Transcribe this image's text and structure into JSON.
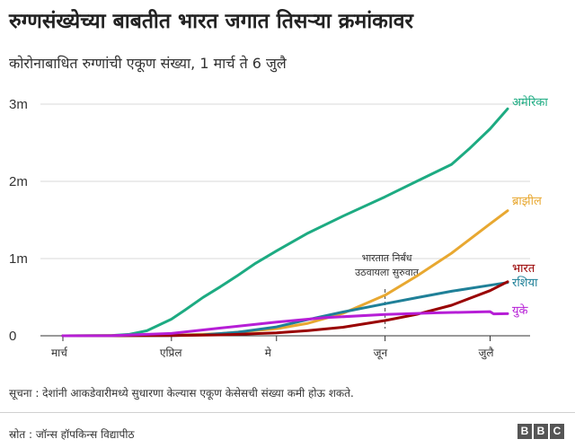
{
  "header": {
    "title": "रुग्णसंख्येच्या बाबतीत भारत जगात तिसऱ्या क्रमांकावर",
    "subtitle": "कोरोनाबाधित रुग्णांची एकूण संख्या, 1 मार्च ते 6 जुलै"
  },
  "footer": {
    "note": "सूचना : देशांनी आकडेवारीमध्ये सुधारणा केल्यास एकूण केसेसची संख्या कमी होऊ शकते.",
    "source": "स्रोत : जॉन्स हॉपकिन्स विद्यापीठ",
    "logo_letters": [
      "B",
      "B",
      "C"
    ]
  },
  "chart_data": {
    "type": "line",
    "x_unit": "date",
    "x_range": [
      "2020-03-01",
      "2020-07-06"
    ],
    "x_ticks": [
      {
        "date": "2020-03-01",
        "label": "मार्च"
      },
      {
        "date": "2020-04-01",
        "label": "एप्रिल"
      },
      {
        "date": "2020-05-01",
        "label": "मे"
      },
      {
        "date": "2020-06-01",
        "label": "जून"
      },
      {
        "date": "2020-07-01",
        "label": "जुलै"
      }
    ],
    "ylim": [
      0,
      3000000
    ],
    "y_ticks": [
      {
        "value": 0,
        "label": "0"
      },
      {
        "value": 1000000,
        "label": "1m"
      },
      {
        "value": 2000000,
        "label": "2m"
      },
      {
        "value": 3000000,
        "label": "3m"
      }
    ],
    "grid": "horizontal",
    "series": [
      {
        "name": "अमेरिका",
        "color": "#1dab82",
        "points": [
          [
            "2020-03-01",
            0
          ],
          [
            "2020-03-10",
            1000
          ],
          [
            "2020-03-15",
            3500
          ],
          [
            "2020-03-20",
            19000
          ],
          [
            "2020-03-25",
            65000
          ],
          [
            "2020-04-01",
            215000
          ],
          [
            "2020-04-05",
            337000
          ],
          [
            "2020-04-10",
            496000
          ],
          [
            "2020-04-15",
            636000
          ],
          [
            "2020-04-20",
            784000
          ],
          [
            "2020-04-25",
            938000
          ],
          [
            "2020-05-01",
            1100000
          ],
          [
            "2020-05-10",
            1330000
          ],
          [
            "2020-05-20",
            1550000
          ],
          [
            "2020-06-01",
            1800000
          ],
          [
            "2020-06-10",
            2000000
          ],
          [
            "2020-06-20",
            2220000
          ],
          [
            "2020-06-25",
            2420000
          ],
          [
            "2020-07-01",
            2680000
          ],
          [
            "2020-07-06",
            2940000
          ]
        ]
      },
      {
        "name": "ब्राझील",
        "color": "#e8a831",
        "points": [
          [
            "2020-03-01",
            0
          ],
          [
            "2020-04-01",
            6800
          ],
          [
            "2020-04-15",
            28000
          ],
          [
            "2020-05-01",
            92000
          ],
          [
            "2020-05-10",
            162000
          ],
          [
            "2020-05-20",
            291000
          ],
          [
            "2020-06-01",
            526000
          ],
          [
            "2020-06-10",
            772000
          ],
          [
            "2020-06-20",
            1070000
          ],
          [
            "2020-07-01",
            1450000
          ],
          [
            "2020-07-06",
            1620000
          ]
        ]
      },
      {
        "name": "रशिया",
        "color": "#1f8098",
        "points": [
          [
            "2020-03-01",
            0
          ],
          [
            "2020-04-01",
            2800
          ],
          [
            "2020-04-10",
            12000
          ],
          [
            "2020-04-20",
            47000
          ],
          [
            "2020-05-01",
            115000
          ],
          [
            "2020-05-10",
            210000
          ],
          [
            "2020-05-20",
            308000
          ],
          [
            "2020-06-01",
            415000
          ],
          [
            "2020-06-10",
            493000
          ],
          [
            "2020-06-20",
            577000
          ],
          [
            "2020-07-01",
            655000
          ],
          [
            "2020-07-06",
            690000
          ]
        ]
      },
      {
        "name": "भारत",
        "color": "#990000",
        "points": [
          [
            "2020-03-01",
            0
          ],
          [
            "2020-04-01",
            1800
          ],
          [
            "2020-04-15",
            12000
          ],
          [
            "2020-05-01",
            37000
          ],
          [
            "2020-05-10",
            67000
          ],
          [
            "2020-05-20",
            111000
          ],
          [
            "2020-06-01",
            198000
          ],
          [
            "2020-06-10",
            277000
          ],
          [
            "2020-06-20",
            395000
          ],
          [
            "2020-07-01",
            585000
          ],
          [
            "2020-07-06",
            700000
          ]
        ]
      },
      {
        "name": "युके",
        "color": "#b61ed6",
        "points": [
          [
            "2020-03-01",
            0
          ],
          [
            "2020-03-15",
            1400
          ],
          [
            "2020-04-01",
            30000
          ],
          [
            "2020-04-15",
            100000
          ],
          [
            "2020-05-01",
            178000
          ],
          [
            "2020-05-15",
            235000
          ],
          [
            "2020-06-01",
            276000
          ],
          [
            "2020-06-15",
            297000
          ],
          [
            "2020-07-01",
            313000
          ],
          [
            "2020-07-02",
            284000
          ],
          [
            "2020-07-06",
            286000
          ]
        ]
      }
    ],
    "annotation": {
      "date": "2020-06-01",
      "lines": [
        "भारतात निर्बंध",
        "उठवायला सुरुवात"
      ]
    }
  }
}
